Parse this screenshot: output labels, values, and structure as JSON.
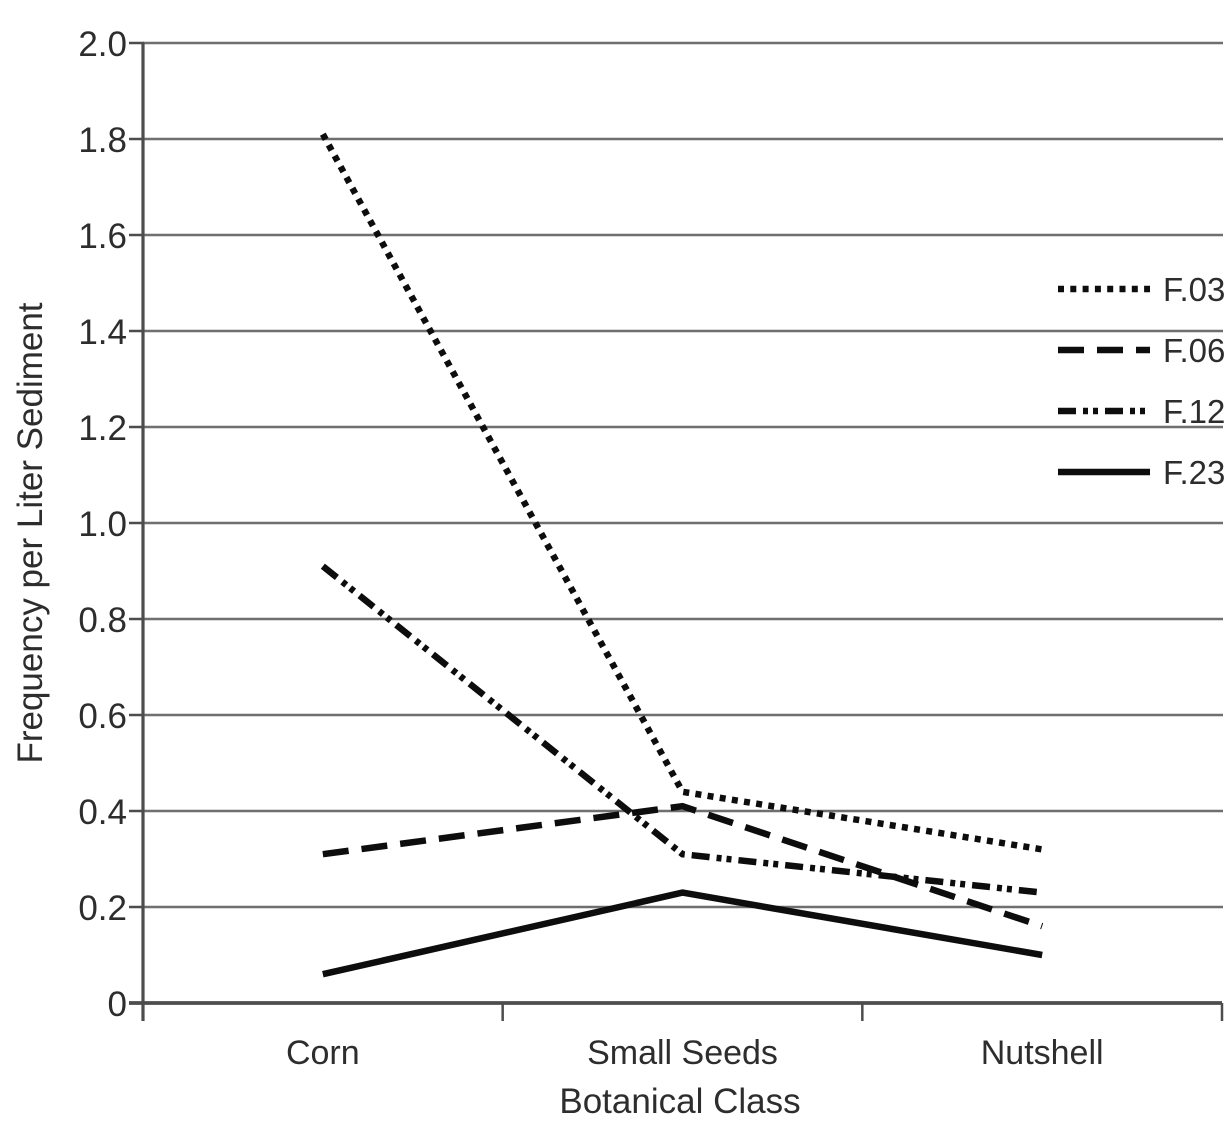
{
  "chart_data": {
    "type": "line",
    "title": "",
    "xlabel": "Botanical Class",
    "ylabel": "Frequency per Liter Sediment",
    "categories": [
      "Corn",
      "Small Seeds",
      "Nutshell"
    ],
    "series": [
      {
        "name": "F.03",
        "style": "dotted",
        "values": [
          1.81,
          0.44,
          0.32
        ]
      },
      {
        "name": "F.06",
        "style": "dashed",
        "values": [
          0.31,
          0.41,
          0.16
        ]
      },
      {
        "name": "F.12",
        "style": "dash-dot-dot",
        "values": [
          0.91,
          0.31,
          0.23
        ]
      },
      {
        "name": "F.23",
        "style": "solid",
        "values": [
          0.06,
          0.23,
          0.1
        ]
      }
    ],
    "ylim": [
      0,
      2.0
    ],
    "ytick_labels": [
      "0",
      "0.2",
      "0.4",
      "0.6",
      "0.8",
      "1.0",
      "1.2",
      "1.4",
      "1.6",
      "1.8",
      "2.0"
    ],
    "grid": true,
    "legend_position": "upper-right",
    "legend_entries": [
      "F.03",
      "F.06",
      "F.12",
      "F.23"
    ]
  },
  "colors": {
    "background": "#ffffff",
    "series_line": "#0d0d0d",
    "grid_line": "#6f6f6f",
    "axis_line": "#4d4d4d",
    "text": "#2d2d2d"
  }
}
